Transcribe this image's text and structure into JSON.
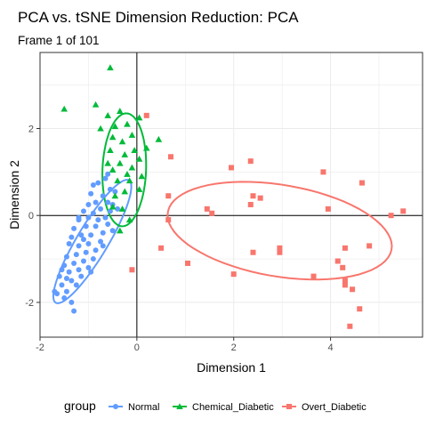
{
  "chart_data": {
    "type": "scatter",
    "title": "PCA vs. tSNE Dimension Reduction: PCA",
    "subtitle": "Frame 1 of 101",
    "xlabel": "Dimension 1",
    "ylabel": "Dimension 2",
    "xlim": [
      -2,
      5.9
    ],
    "ylim": [
      -2.8,
      3.75
    ],
    "x_ticks": [
      -2,
      0,
      2,
      4
    ],
    "y_ticks": [
      -2,
      0,
      2
    ],
    "grid": true,
    "zero_lines": true,
    "legend": {
      "position": "bottom",
      "title": "group",
      "entries": [
        "Normal",
        "Chemical_Diabetic",
        "Overt_Diabetic"
      ]
    },
    "series": [
      {
        "name": "Normal",
        "color": "#619CFF",
        "marker": "circle",
        "points": [
          [
            -0.65,
            0.85
          ],
          [
            -0.8,
            0.75
          ],
          [
            -0.55,
            0.6
          ],
          [
            -0.9,
            0.7
          ],
          [
            -0.7,
            0.45
          ],
          [
            -0.95,
            0.5
          ],
          [
            -0.6,
            0.3
          ],
          [
            -0.85,
            0.3
          ],
          [
            -1.0,
            0.25
          ],
          [
            -0.75,
            0.15
          ],
          [
            -0.55,
            0.1
          ],
          [
            -0.9,
            0.05
          ],
          [
            -1.1,
            0.1
          ],
          [
            -0.65,
            -0.05
          ],
          [
            -0.8,
            -0.1
          ],
          [
            -1.0,
            -0.05
          ],
          [
            -1.2,
            -0.1
          ],
          [
            -0.6,
            -0.2
          ],
          [
            -0.85,
            -0.25
          ],
          [
            -1.05,
            -0.25
          ],
          [
            -1.3,
            -0.3
          ],
          [
            -0.7,
            -0.4
          ],
          [
            -0.95,
            -0.45
          ],
          [
            -1.15,
            -0.45
          ],
          [
            -1.35,
            -0.5
          ],
          [
            -0.75,
            -0.6
          ],
          [
            -1.0,
            -0.65
          ],
          [
            -1.2,
            -0.7
          ],
          [
            -1.4,
            -0.65
          ],
          [
            -0.85,
            -0.8
          ],
          [
            -1.05,
            -0.85
          ],
          [
            -1.25,
            -0.9
          ],
          [
            -1.45,
            -0.95
          ],
          [
            -0.9,
            -1.0
          ],
          [
            -1.1,
            -1.05
          ],
          [
            -1.3,
            -1.1
          ],
          [
            -1.5,
            -1.15
          ],
          [
            -1.0,
            -1.2
          ],
          [
            -1.2,
            -1.25
          ],
          [
            -1.4,
            -1.3
          ],
          [
            -1.6,
            -1.4
          ],
          [
            -1.15,
            -1.4
          ],
          [
            -1.35,
            -1.5
          ],
          [
            -1.55,
            -1.6
          ],
          [
            -1.25,
            -1.6
          ],
          [
            -1.45,
            -1.75
          ],
          [
            -1.65,
            -1.8
          ],
          [
            -1.5,
            -1.9
          ],
          [
            -1.35,
            -2.0
          ],
          [
            -1.3,
            -2.2
          ],
          [
            -0.6,
            0.95
          ],
          [
            -0.45,
            0.55
          ],
          [
            -0.5,
            0.25
          ],
          [
            -0.5,
            -0.35
          ],
          [
            -1.1,
            -0.55
          ],
          [
            -0.7,
            -0.7
          ],
          [
            -1.45,
            -1.45
          ],
          [
            -1.55,
            -1.25
          ],
          [
            -0.4,
            0.15
          ],
          [
            -1.2,
            -0.05
          ],
          [
            -0.95,
            -1.3
          ],
          [
            -1.7,
            -1.75
          ]
        ]
      },
      {
        "name": "Chemical_Diabetic",
        "color": "#00BA38",
        "marker": "triangle",
        "points": [
          [
            -0.55,
            3.4
          ],
          [
            -1.5,
            2.45
          ],
          [
            -0.85,
            2.55
          ],
          [
            -0.6,
            2.3
          ],
          [
            -0.35,
            2.4
          ],
          [
            -0.2,
            2.1
          ],
          [
            0.05,
            2.25
          ],
          [
            -0.45,
            2.05
          ],
          [
            -0.75,
            2.0
          ],
          [
            -0.5,
            1.8
          ],
          [
            -0.3,
            1.7
          ],
          [
            -0.1,
            1.85
          ],
          [
            0.45,
            1.75
          ],
          [
            -0.25,
            1.4
          ],
          [
            -0.05,
            1.5
          ],
          [
            -0.55,
            1.5
          ],
          [
            -0.35,
            1.2
          ],
          [
            0.05,
            1.3
          ],
          [
            -0.5,
            1.05
          ],
          [
            -0.2,
            0.95
          ],
          [
            -0.15,
            0.8
          ],
          [
            0.1,
            0.9
          ],
          [
            -0.4,
            0.8
          ],
          [
            -0.25,
            0.55
          ],
          [
            0.05,
            0.6
          ],
          [
            -0.45,
            0.45
          ],
          [
            -0.3,
            0.15
          ],
          [
            -0.15,
            -0.1
          ],
          [
            -0.35,
            -0.35
          ],
          [
            -0.6,
            1.2
          ],
          [
            -0.1,
            1.1
          ],
          [
            -0.5,
            0.2
          ],
          [
            0.2,
            1.55
          ]
        ]
      },
      {
        "name": "Overt_Diabetic",
        "color": "#F8766D",
        "marker": "square",
        "points": [
          [
            0.2,
            2.3
          ],
          [
            0.7,
            1.35
          ],
          [
            1.95,
            1.1
          ],
          [
            3.85,
            1.0
          ],
          [
            2.35,
            1.25
          ],
          [
            0.65,
            0.45
          ],
          [
            2.55,
            0.4
          ],
          [
            2.4,
            0.45
          ],
          [
            2.35,
            0.25
          ],
          [
            3.95,
            0.15
          ],
          [
            4.65,
            0.75
          ],
          [
            1.45,
            0.15
          ],
          [
            1.55,
            0.05
          ],
          [
            0.65,
            -0.1
          ],
          [
            5.5,
            0.1
          ],
          [
            5.25,
            0.0
          ],
          [
            4.8,
            -0.7
          ],
          [
            2.95,
            -0.75
          ],
          [
            2.95,
            -0.85
          ],
          [
            0.5,
            -0.75
          ],
          [
            2.4,
            -0.85
          ],
          [
            4.3,
            -0.75
          ],
          [
            4.25,
            -1.2
          ],
          [
            4.15,
            -1.05
          ],
          [
            1.05,
            -1.1
          ],
          [
            2.0,
            -1.35
          ],
          [
            3.65,
            -1.4
          ],
          [
            4.3,
            -1.5
          ],
          [
            4.45,
            -1.7
          ],
          [
            -0.1,
            -1.25
          ],
          [
            4.4,
            -2.55
          ],
          [
            4.6,
            -2.15
          ],
          [
            4.3,
            -1.6
          ]
        ]
      }
    ],
    "ellipses": [
      {
        "series": "Normal",
        "color": "#619CFF",
        "cx": -0.92,
        "cy": -0.6,
        "rx": 1.6,
        "ry": 0.33,
        "angle_deg": 62
      },
      {
        "series": "Chemical_Diabetic",
        "color": "#00BA38",
        "cx": -0.26,
        "cy": 1.05,
        "rx": 1.3,
        "ry": 0.45,
        "angle_deg": 88
      },
      {
        "series": "Overt_Diabetic",
        "color": "#F8766D",
        "cx": 2.95,
        "cy": -0.35,
        "rx": 2.35,
        "ry": 1.05,
        "angle_deg": -11
      }
    ]
  }
}
